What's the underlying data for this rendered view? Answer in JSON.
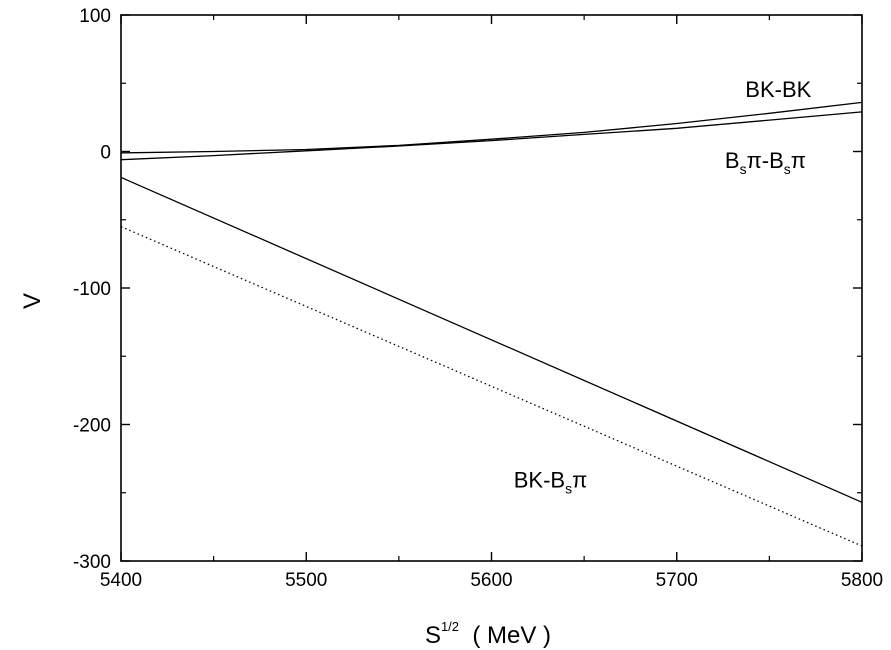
{
  "chart_data": {
    "type": "line",
    "title": "",
    "xlabel": {
      "base": "S",
      "sup": "1/2",
      "rest": "  ( MeV )"
    },
    "ylabel": "V",
    "xlim": [
      5400,
      5800
    ],
    "ylim": [
      -300,
      100
    ],
    "x_ticks": [
      5400,
      5500,
      5600,
      5700,
      5800
    ],
    "y_ticks": [
      -300,
      -200,
      -100,
      0,
      100
    ],
    "x_tick_labels": [
      "5400",
      "5500",
      "5600",
      "5700",
      "5800"
    ],
    "y_tick_labels": [
      "-300",
      "-200",
      "-100",
      "0",
      "100"
    ],
    "x_minor_step": 50,
    "y_minor_step": 50,
    "grid": false,
    "series": [
      {
        "name": "BK-BK",
        "style": "solid",
        "x": [
          5400,
          5450,
          5500,
          5550,
          5600,
          5650,
          5700,
          5750,
          5800
        ],
        "y": [
          -1,
          0,
          1.5,
          4.5,
          9,
          14,
          20.5,
          28,
          36
        ]
      },
      {
        "name": "Bsπ-Bsπ",
        "style": "solid",
        "x": [
          5400,
          5450,
          5500,
          5550,
          5600,
          5650,
          5700,
          5750,
          5800
        ],
        "y": [
          -6,
          -3,
          0.5,
          4,
          8,
          12.5,
          17,
          23,
          29
        ]
      },
      {
        "name": "BK-Bsπ",
        "style": "solid",
        "x": [
          5400,
          5800
        ],
        "y": [
          -19,
          -257
        ]
      },
      {
        "name": "",
        "style": "dotted",
        "x": [
          5400,
          5800
        ],
        "y": [
          -55,
          -289
        ]
      }
    ],
    "annotations": [
      {
        "text": "BK-BK",
        "x": 5737,
        "y": 40
      },
      {
        "text_parts": [
          "B",
          "s",
          "π-B",
          "s",
          "π"
        ],
        "x": 5726,
        "y": -12
      },
      {
        "text_parts": [
          "BK-B",
          "s",
          "π"
        ],
        "x": 5612,
        "y": -246
      }
    ]
  }
}
